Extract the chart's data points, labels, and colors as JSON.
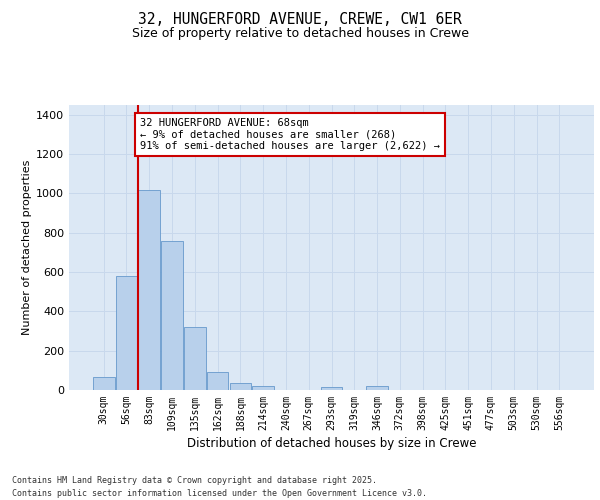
{
  "title_line1": "32, HUNGERFORD AVENUE, CREWE, CW1 6ER",
  "title_line2": "Size of property relative to detached houses in Crewe",
  "xlabel": "Distribution of detached houses by size in Crewe",
  "ylabel": "Number of detached properties",
  "categories": [
    "30sqm",
    "56sqm",
    "83sqm",
    "109sqm",
    "135sqm",
    "162sqm",
    "188sqm",
    "214sqm",
    "240sqm",
    "267sqm",
    "293sqm",
    "319sqm",
    "346sqm",
    "372sqm",
    "398sqm",
    "425sqm",
    "451sqm",
    "477sqm",
    "503sqm",
    "530sqm",
    "556sqm"
  ],
  "values": [
    65,
    580,
    1020,
    760,
    320,
    90,
    38,
    20,
    0,
    0,
    15,
    0,
    20,
    0,
    0,
    0,
    0,
    0,
    0,
    0,
    0
  ],
  "bar_color": "#b8d0eb",
  "bar_edge_color": "#6699cc",
  "vline_color": "#cc0000",
  "vline_x": 1.5,
  "annotation_text": "32 HUNGERFORD AVENUE: 68sqm\n← 9% of detached houses are smaller (268)\n91% of semi-detached houses are larger (2,622) →",
  "ylim": [
    0,
    1450
  ],
  "yticks": [
    0,
    200,
    400,
    600,
    800,
    1000,
    1200,
    1400
  ],
  "grid_color": "#c8d8ec",
  "background_color": "#dce8f5",
  "footer_line1": "Contains HM Land Registry data © Crown copyright and database right 2025.",
  "footer_line2": "Contains public sector information licensed under the Open Government Licence v3.0."
}
